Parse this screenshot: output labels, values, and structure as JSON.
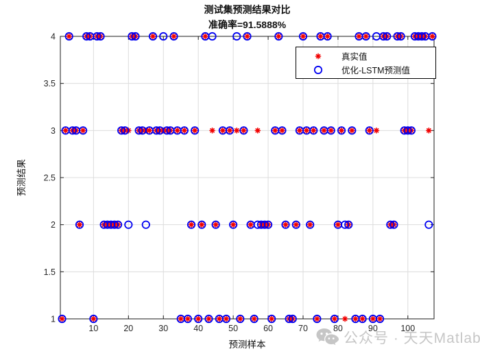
{
  "figure": {
    "title": "测试集预测结果对比",
    "subtitle": "准确率=91.5888%",
    "xlabel": "预测样本",
    "ylabel": "预测结果",
    "watermark": "公众号 · 天天Matlab"
  },
  "legend": {
    "items": [
      {
        "label": "真实值",
        "marker": "asterisk",
        "color": "#f10000"
      },
      {
        "label": "优化-LSTM预测值",
        "marker": "circle",
        "color": "#0000f1"
      }
    ]
  },
  "colors": {
    "true_marker": "#f10000",
    "pred_marker": "#0000f1",
    "grid": "#dcdcdc",
    "frame": "#1a1a1a",
    "tick_text": "#262626"
  },
  "chart_data": {
    "type": "scatter",
    "title": "测试集预测结果对比",
    "subtitle": "准确率=91.5888%",
    "accuracy_pct": 91.5888,
    "xlabel": "预测样本",
    "ylabel": "预测结果",
    "n_samples": 107,
    "xlim": [
      0.5,
      107.5
    ],
    "ylim": [
      1,
      4
    ],
    "xticks": [
      10,
      20,
      30,
      40,
      50,
      60,
      70,
      80,
      90,
      100
    ],
    "yticks": [
      1,
      1.5,
      2,
      2.5,
      3,
      3.5,
      4
    ],
    "grid": true,
    "legend_position": "upper-right-inside",
    "series": [
      {
        "name": "真实值",
        "marker": "asterisk",
        "color": "#f10000",
        "values": [
          1,
          3,
          4,
          3,
          3,
          2,
          3,
          4,
          4,
          1,
          4,
          4,
          2,
          2,
          2,
          2,
          2,
          3,
          3,
          3,
          4,
          4,
          3,
          3,
          3,
          3,
          4,
          3,
          3,
          3,
          3,
          3,
          4,
          3,
          1,
          3,
          1,
          2,
          3,
          1,
          2,
          4,
          1,
          3,
          2,
          1,
          3,
          1,
          3,
          2,
          3,
          1,
          3,
          4,
          2,
          1,
          3,
          2,
          2,
          2,
          1,
          3,
          4,
          3,
          2,
          1,
          1,
          2,
          3,
          4,
          3,
          2,
          3,
          1,
          4,
          3,
          4,
          3,
          1,
          2,
          3,
          1,
          2,
          3,
          1,
          4,
          1,
          4,
          3,
          1,
          3,
          1,
          4,
          4,
          2,
          2,
          4,
          4,
          3,
          3,
          3,
          4,
          4,
          4,
          4,
          3,
          4
        ]
      },
      {
        "name": "优化-LSTM预测值",
        "marker": "circle",
        "color": "#0000f1",
        "values": [
          1,
          3,
          4,
          3,
          3,
          2,
          3,
          4,
          4,
          1,
          4,
          4,
          2,
          2,
          2,
          2,
          2,
          3,
          3,
          2,
          4,
          4,
          3,
          3,
          2,
          3,
          4,
          3,
          3,
          4,
          3,
          3,
          4,
          3,
          1,
          3,
          1,
          2,
          3,
          1,
          2,
          4,
          1,
          4,
          2,
          1,
          3,
          1,
          3,
          2,
          4,
          1,
          3,
          4,
          2,
          1,
          2,
          2,
          2,
          2,
          1,
          3,
          4,
          3,
          2,
          1,
          1,
          2,
          3,
          4,
          3,
          2,
          3,
          1,
          4,
          3,
          4,
          3,
          1,
          2,
          3,
          2,
          2,
          3,
          1,
          4,
          1,
          4,
          3,
          1,
          4,
          1,
          4,
          4,
          2,
          2,
          4,
          4,
          3,
          3,
          3,
          4,
          4,
          4,
          4,
          2,
          4
        ]
      }
    ]
  }
}
